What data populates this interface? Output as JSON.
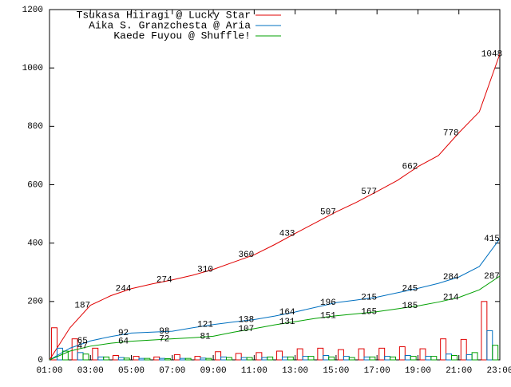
{
  "chart_data": {
    "type": "line",
    "x": [
      1,
      2,
      3,
      4,
      5,
      6,
      7,
      8,
      9,
      10,
      11,
      12,
      13,
      14,
      15,
      16,
      17,
      18,
      19,
      20,
      21,
      22,
      23
    ],
    "xlim": [
      1,
      23
    ],
    "xticks": [
      {
        "value": 1,
        "label": "01:00"
      },
      {
        "value": 3,
        "label": "03:00"
      },
      {
        "value": 5,
        "label": "05:00"
      },
      {
        "value": 7,
        "label": "07:00"
      },
      {
        "value": 9,
        "label": "09:00"
      },
      {
        "value": 11,
        "label": "11:00"
      },
      {
        "value": 13,
        "label": "13:00"
      },
      {
        "value": 15,
        "label": "15:00"
      },
      {
        "value": 17,
        "label": "17:00"
      },
      {
        "value": 19,
        "label": "19:00"
      },
      {
        "value": 21,
        "label": "21:00"
      },
      {
        "value": 23,
        "label": "23:00"
      }
    ],
    "ylim": [
      0,
      1200
    ],
    "yticks": [
      0,
      200,
      400,
      600,
      800,
      1000,
      1200
    ],
    "legend": "top-left",
    "series": [
      {
        "name": "Tsukasa Hiiragi @ Lucky Star",
        "color": "#e00000",
        "values": [
          0,
          110,
          187,
          220,
          244,
          260,
          274,
          290,
          310,
          335,
          360,
          395,
          433,
          470,
          507,
          540,
          577,
          615,
          662,
          700,
          778,
          850,
          1048
        ],
        "bars": [
          110,
          72,
          40,
          15,
          12,
          10,
          18,
          12,
          28,
          22,
          25,
          30,
          38,
          40,
          35,
          38,
          40,
          45,
          38,
          72,
          70,
          200
        ]
      },
      {
        "name": "Aika S. Granzchesta @ Aria",
        "color": "#0070c0",
        "values": [
          0,
          40,
          65,
          80,
          92,
          95,
          98,
          110,
          121,
          130,
          138,
          150,
          164,
          180,
          196,
          205,
          215,
          230,
          245,
          262,
          284,
          320,
          415
        ],
        "bars": [
          40,
          25,
          10,
          8,
          5,
          5,
          5,
          6,
          10,
          8,
          8,
          10,
          12,
          15,
          12,
          10,
          12,
          15,
          12,
          20,
          18,
          100
        ]
      },
      {
        "name": "Kaede Fuyou @ Shuffle!",
        "color": "#00a000",
        "values": [
          0,
          30,
          47,
          57,
          64,
          68,
          72,
          76,
          81,
          95,
          107,
          120,
          131,
          142,
          151,
          158,
          165,
          175,
          185,
          198,
          214,
          240,
          287
        ],
        "bars": [
          30,
          20,
          10,
          6,
          5,
          4,
          5,
          5,
          8,
          8,
          10,
          10,
          12,
          10,
          8,
          10,
          10,
          12,
          12,
          15,
          25,
          50
        ]
      }
    ]
  }
}
